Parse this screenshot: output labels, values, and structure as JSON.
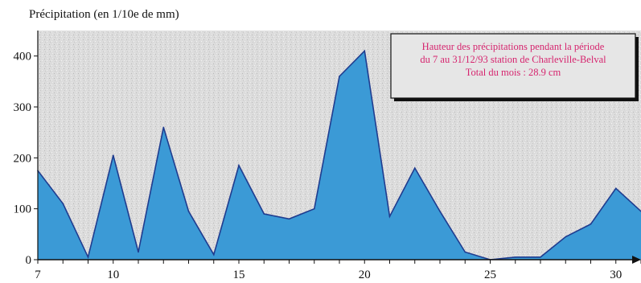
{
  "colors": {
    "area_fill": "#3b9ad6",
    "area_stroke": "#1f3c8f",
    "plot_bg": "#dcdcdc",
    "annotation_text": "#d6246e",
    "annotation_bg": "#e6e6e6",
    "axis": "#111111"
  },
  "chart_data": {
    "type": "area",
    "ylabel": "Précipitation (en 1/10e de mm)",
    "xlim": [
      7,
      31
    ],
    "ylim": [
      0,
      450
    ],
    "x_ticks": [
      7,
      10,
      15,
      20,
      25,
      30
    ],
    "y_ticks": [
      0,
      100,
      200,
      300,
      400
    ],
    "grid": false,
    "annotation": {
      "lines": [
        "Hauteur des précipitations pendant la période",
        "du 7 au 31/12/93 station de Charleville-Belval",
        "Total du mois : 28.9 cm"
      ],
      "placement": "top-right"
    },
    "x": [
      7,
      8,
      9,
      10,
      11,
      12,
      13,
      14,
      15,
      16,
      17,
      18,
      19,
      20,
      21,
      22,
      23,
      24,
      25,
      26,
      27,
      28,
      29,
      30,
      31
    ],
    "values": [
      175,
      110,
      5,
      205,
      15,
      260,
      95,
      10,
      185,
      90,
      80,
      100,
      360,
      410,
      85,
      180,
      95,
      15,
      0,
      5,
      5,
      45,
      70,
      140,
      95
    ]
  }
}
